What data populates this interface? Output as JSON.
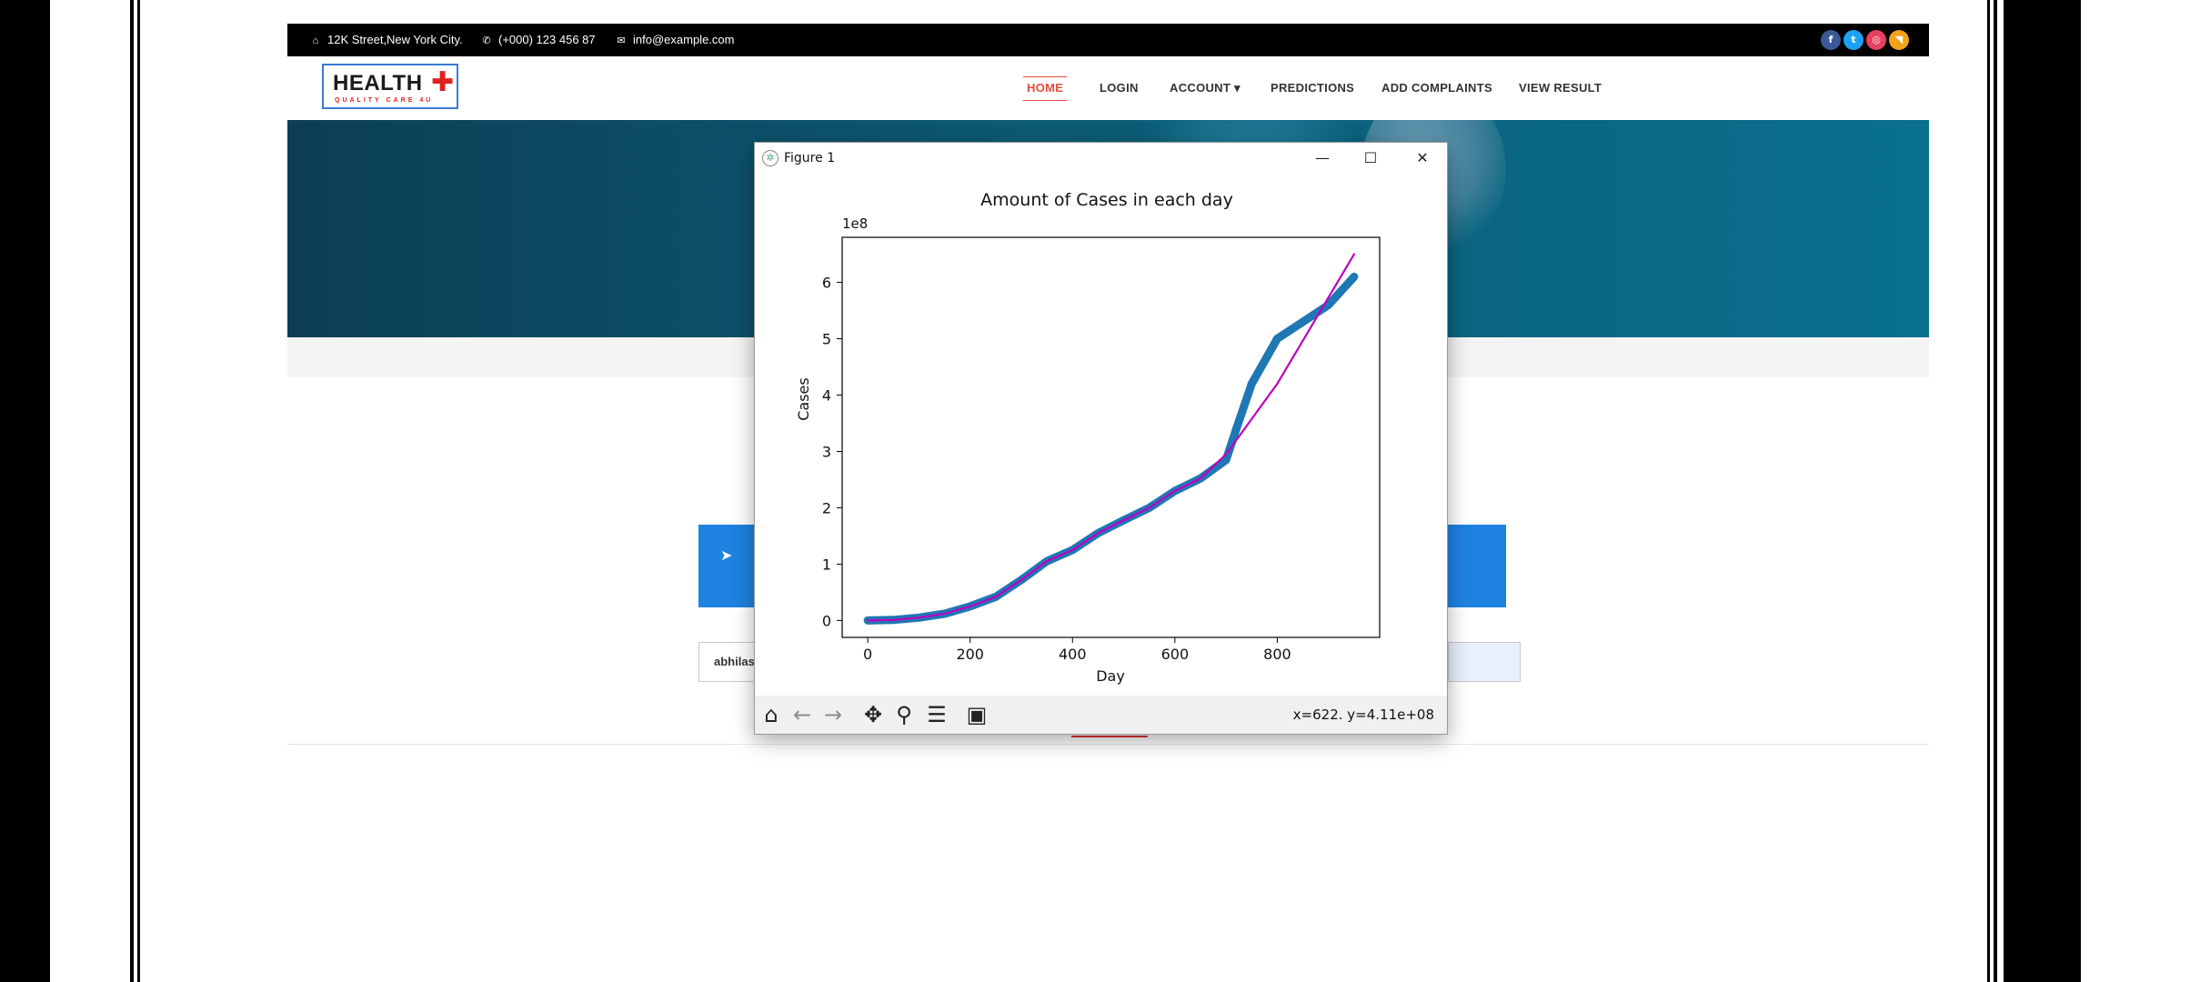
{
  "header": {
    "address": "12K Street,New York City.",
    "phone": "(+000) 123 456 87",
    "email": "info@example.com",
    "address_icon": "home-icon",
    "phone_icon": "phone-icon",
    "email_icon": "envelope-icon",
    "social": [
      {
        "name": "facebook-icon",
        "glyph": "f",
        "color": "#3b5998"
      },
      {
        "name": "twitter-icon",
        "glyph": "t",
        "color": "#1da1f2"
      },
      {
        "name": "instagram-icon",
        "glyph": "◎",
        "color": "#e4405f"
      },
      {
        "name": "rss-icon",
        "glyph": "◥",
        "color": "#f4a21a"
      }
    ]
  },
  "brand": {
    "name": "HEALTH",
    "tagline": "QUALITY CARE 4U"
  },
  "nav": {
    "items": [
      {
        "label": "HOME",
        "active": true
      },
      {
        "label": "LOGIN",
        "active": false
      },
      {
        "label": "ACCOUNT ▾",
        "active": false
      },
      {
        "label": "PREDICTIONS",
        "active": false
      },
      {
        "label": "ADD COMPLAINTS",
        "active": false
      },
      {
        "label": "VIEW RESULT",
        "active": false
      }
    ]
  },
  "form": {
    "input_value": "abhilas"
  },
  "figure_window": {
    "title": "Figure 1",
    "controls": {
      "minimize": "—",
      "maximize": "☐",
      "close": "✕"
    },
    "coord_readout": "x=622. y=4.11e+08",
    "toolbar": [
      {
        "name": "home-icon",
        "glyph": "⌂"
      },
      {
        "name": "back-arrow-icon",
        "glyph": "←"
      },
      {
        "name": "forward-arrow-icon",
        "glyph": "→"
      },
      {
        "name": "pan-icon",
        "glyph": "✥"
      },
      {
        "name": "zoom-magnifier-icon",
        "glyph": "⚲"
      },
      {
        "name": "subplots-config-icon",
        "glyph": "☰"
      },
      {
        "name": "save-disk-icon",
        "glyph": "▣"
      }
    ]
  },
  "chart_data": {
    "type": "line",
    "title": "Amount of Cases in each day",
    "xlabel": "Day",
    "ylabel": "Cases",
    "offset_label": "1e8",
    "xlim": [
      -50,
      1000
    ],
    "ylim": [
      -0.3,
      6.8
    ],
    "xticks": [
      0,
      200,
      400,
      600,
      800
    ],
    "yticks": [
      0,
      1,
      2,
      3,
      4,
      5,
      6
    ],
    "series": [
      {
        "color": "#1f77b4",
        "x": [
          0,
          50,
          100,
          150,
          200,
          250,
          300,
          350,
          400,
          450,
          500,
          550,
          600,
          650,
          700,
          720,
          750,
          800,
          850,
          900,
          950
        ],
        "y": [
          0,
          0.01,
          0.05,
          0.12,
          0.25,
          0.42,
          0.72,
          1.05,
          1.25,
          1.55,
          1.78,
          2.0,
          2.3,
          2.52,
          2.85,
          3.4,
          4.2,
          5.0,
          5.3,
          5.6,
          6.1
        ]
      },
      {
        "color": "#bf00bf",
        "x": [
          0,
          50,
          100,
          150,
          200,
          250,
          300,
          350,
          400,
          450,
          500,
          550,
          600,
          650,
          700,
          800,
          950
        ],
        "y": [
          0,
          0.01,
          0.05,
          0.12,
          0.25,
          0.42,
          0.72,
          1.05,
          1.25,
          1.55,
          1.78,
          2.0,
          2.3,
          2.52,
          2.95,
          4.2,
          6.5
        ]
      }
    ]
  }
}
